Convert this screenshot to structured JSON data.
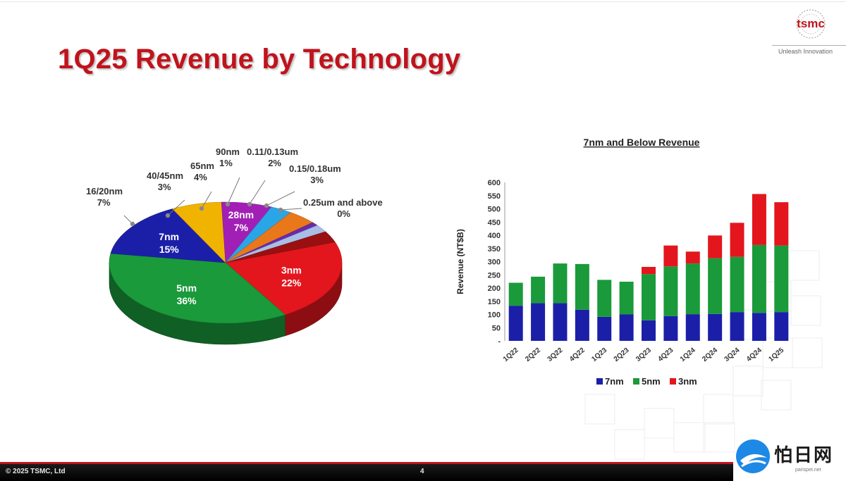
{
  "header": {
    "title": "1Q25 Revenue by Technology",
    "logo_text": "tsmc",
    "tagline": "Unleash Innovation"
  },
  "footer": {
    "copyright": "© 2025 TSMC, Ltd",
    "page_number": "4"
  },
  "watermark": {
    "text": "怕日网",
    "url": "parispet.net"
  },
  "chart_data": [
    {
      "type": "pie",
      "slices": [
        {
          "name": "3nm",
          "value": 22,
          "label": "22%",
          "color": "#e3161d"
        },
        {
          "name": "5nm",
          "value": 36,
          "label": "36%",
          "color": "#1a9a3a"
        },
        {
          "name": "7nm",
          "value": 15,
          "label": "15%",
          "color": "#1b1fa8"
        },
        {
          "name": "16/20nm",
          "value": 7,
          "label": "7%",
          "color": "#f0b400"
        },
        {
          "name": "28nm",
          "value": 7,
          "label": "7%",
          "color": "#a21fb5"
        },
        {
          "name": "40/45nm",
          "value": 3,
          "label": "3%",
          "color": "#2aa6e8"
        },
        {
          "name": "65nm",
          "value": 4,
          "label": "4%",
          "color": "#e9781a"
        },
        {
          "name": "90nm",
          "value": 1,
          "label": "1%",
          "color": "#6a2aa8"
        },
        {
          "name": "0.11/0.13um",
          "value": 2,
          "label": "2%",
          "color": "#a9bee6"
        },
        {
          "name": "0.15/0.18um",
          "value": 3,
          "label": "3%",
          "color": "#9a1010"
        },
        {
          "name": "0.25um and above",
          "value": 0,
          "label": "0%",
          "color": "#7a0a0a"
        }
      ]
    },
    {
      "type": "bar",
      "stacked": true,
      "title": "7nm and Below Revenue",
      "ylabel": "Revenue (NT$B)",
      "ylim": [
        0,
        600
      ],
      "yticks": [
        "-",
        "50",
        "100",
        "150",
        "200",
        "250",
        "300",
        "350",
        "400",
        "450",
        "500",
        "550",
        "600"
      ],
      "categories": [
        "1Q22",
        "2Q22",
        "3Q22",
        "4Q22",
        "1Q23",
        "2Q23",
        "3Q23",
        "4Q23",
        "1Q24",
        "2Q24",
        "3Q24",
        "4Q24",
        "1Q25"
      ],
      "series": [
        {
          "name": "7nm",
          "color": "#1b1fa8",
          "values": [
            133,
            143,
            143,
            118,
            91,
            100,
            78,
            94,
            101,
            102,
            109,
            106,
            109
          ]
        },
        {
          "name": "5nm",
          "color": "#1a9a3a",
          "values": [
            87,
            100,
            150,
            173,
            140,
            124,
            175,
            188,
            192,
            211,
            209,
            257,
            252
          ]
        },
        {
          "name": "3nm",
          "color": "#e3161d",
          "values": [
            0,
            0,
            0,
            0,
            0,
            0,
            27,
            79,
            45,
            86,
            129,
            193,
            164
          ]
        }
      ],
      "legend": "bottom",
      "grid": false
    }
  ]
}
